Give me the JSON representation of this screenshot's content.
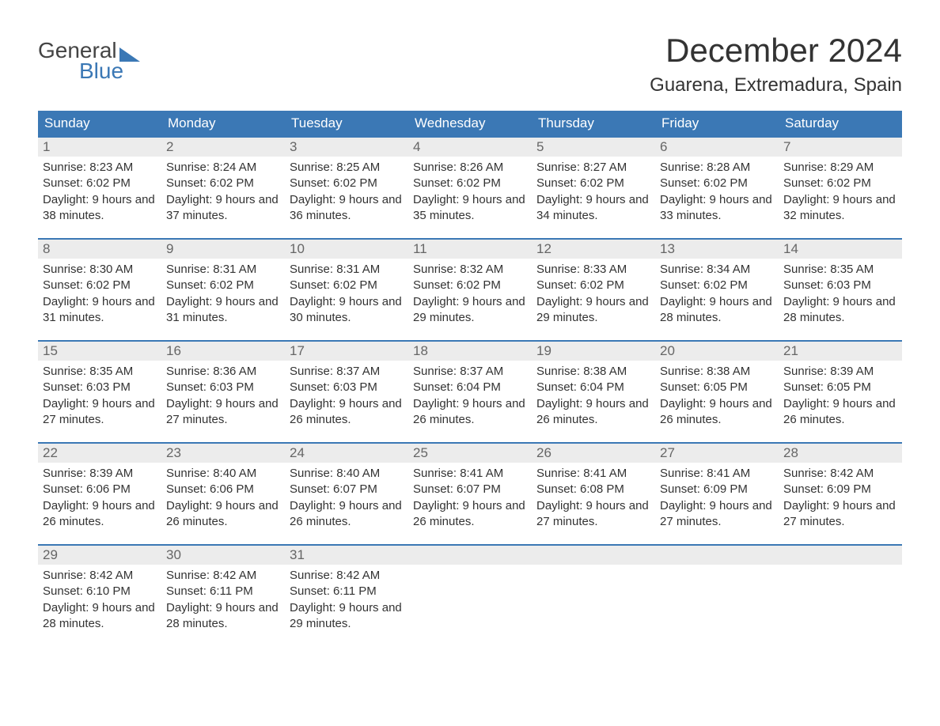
{
  "logo": {
    "word1": "General",
    "word2": "Blue"
  },
  "title": "December 2024",
  "location": "Guarena, Extremadura, Spain",
  "colors": {
    "header_bg": "#3b78b5",
    "header_text": "#ffffff",
    "day_num_bg": "#ececec",
    "day_num_text": "#666666",
    "border_top": "#3b78b5",
    "body_text": "#333333",
    "page_bg": "#ffffff"
  },
  "fonts": {
    "title_size_pt": 32,
    "location_size_pt": 18,
    "body_size_pt": 11
  },
  "days_of_week": [
    "Sunday",
    "Monday",
    "Tuesday",
    "Wednesday",
    "Thursday",
    "Friday",
    "Saturday"
  ],
  "labels": {
    "sunrise": "Sunrise:",
    "sunset": "Sunset:",
    "daylight": "Daylight:"
  },
  "weeks": [
    [
      {
        "n": "1",
        "sunrise": "8:23 AM",
        "sunset": "6:02 PM",
        "daylight": "9 hours and 38 minutes."
      },
      {
        "n": "2",
        "sunrise": "8:24 AM",
        "sunset": "6:02 PM",
        "daylight": "9 hours and 37 minutes."
      },
      {
        "n": "3",
        "sunrise": "8:25 AM",
        "sunset": "6:02 PM",
        "daylight": "9 hours and 36 minutes."
      },
      {
        "n": "4",
        "sunrise": "8:26 AM",
        "sunset": "6:02 PM",
        "daylight": "9 hours and 35 minutes."
      },
      {
        "n": "5",
        "sunrise": "8:27 AM",
        "sunset": "6:02 PM",
        "daylight": "9 hours and 34 minutes."
      },
      {
        "n": "6",
        "sunrise": "8:28 AM",
        "sunset": "6:02 PM",
        "daylight": "9 hours and 33 minutes."
      },
      {
        "n": "7",
        "sunrise": "8:29 AM",
        "sunset": "6:02 PM",
        "daylight": "9 hours and 32 minutes."
      }
    ],
    [
      {
        "n": "8",
        "sunrise": "8:30 AM",
        "sunset": "6:02 PM",
        "daylight": "9 hours and 31 minutes."
      },
      {
        "n": "9",
        "sunrise": "8:31 AM",
        "sunset": "6:02 PM",
        "daylight": "9 hours and 31 minutes."
      },
      {
        "n": "10",
        "sunrise": "8:31 AM",
        "sunset": "6:02 PM",
        "daylight": "9 hours and 30 minutes."
      },
      {
        "n": "11",
        "sunrise": "8:32 AM",
        "sunset": "6:02 PM",
        "daylight": "9 hours and 29 minutes."
      },
      {
        "n": "12",
        "sunrise": "8:33 AM",
        "sunset": "6:02 PM",
        "daylight": "9 hours and 29 minutes."
      },
      {
        "n": "13",
        "sunrise": "8:34 AM",
        "sunset": "6:02 PM",
        "daylight": "9 hours and 28 minutes."
      },
      {
        "n": "14",
        "sunrise": "8:35 AM",
        "sunset": "6:03 PM",
        "daylight": "9 hours and 28 minutes."
      }
    ],
    [
      {
        "n": "15",
        "sunrise": "8:35 AM",
        "sunset": "6:03 PM",
        "daylight": "9 hours and 27 minutes."
      },
      {
        "n": "16",
        "sunrise": "8:36 AM",
        "sunset": "6:03 PM",
        "daylight": "9 hours and 27 minutes."
      },
      {
        "n": "17",
        "sunrise": "8:37 AM",
        "sunset": "6:03 PM",
        "daylight": "9 hours and 26 minutes."
      },
      {
        "n": "18",
        "sunrise": "8:37 AM",
        "sunset": "6:04 PM",
        "daylight": "9 hours and 26 minutes."
      },
      {
        "n": "19",
        "sunrise": "8:38 AM",
        "sunset": "6:04 PM",
        "daylight": "9 hours and 26 minutes."
      },
      {
        "n": "20",
        "sunrise": "8:38 AM",
        "sunset": "6:05 PM",
        "daylight": "9 hours and 26 minutes."
      },
      {
        "n": "21",
        "sunrise": "8:39 AM",
        "sunset": "6:05 PM",
        "daylight": "9 hours and 26 minutes."
      }
    ],
    [
      {
        "n": "22",
        "sunrise": "8:39 AM",
        "sunset": "6:06 PM",
        "daylight": "9 hours and 26 minutes."
      },
      {
        "n": "23",
        "sunrise": "8:40 AM",
        "sunset": "6:06 PM",
        "daylight": "9 hours and 26 minutes."
      },
      {
        "n": "24",
        "sunrise": "8:40 AM",
        "sunset": "6:07 PM",
        "daylight": "9 hours and 26 minutes."
      },
      {
        "n": "25",
        "sunrise": "8:41 AM",
        "sunset": "6:07 PM",
        "daylight": "9 hours and 26 minutes."
      },
      {
        "n": "26",
        "sunrise": "8:41 AM",
        "sunset": "6:08 PM",
        "daylight": "9 hours and 27 minutes."
      },
      {
        "n": "27",
        "sunrise": "8:41 AM",
        "sunset": "6:09 PM",
        "daylight": "9 hours and 27 minutes."
      },
      {
        "n": "28",
        "sunrise": "8:42 AM",
        "sunset": "6:09 PM",
        "daylight": "9 hours and 27 minutes."
      }
    ],
    [
      {
        "n": "29",
        "sunrise": "8:42 AM",
        "sunset": "6:10 PM",
        "daylight": "9 hours and 28 minutes."
      },
      {
        "n": "30",
        "sunrise": "8:42 AM",
        "sunset": "6:11 PM",
        "daylight": "9 hours and 28 minutes."
      },
      {
        "n": "31",
        "sunrise": "8:42 AM",
        "sunset": "6:11 PM",
        "daylight": "9 hours and 29 minutes."
      },
      {
        "empty": true
      },
      {
        "empty": true
      },
      {
        "empty": true
      },
      {
        "empty": true
      }
    ]
  ]
}
